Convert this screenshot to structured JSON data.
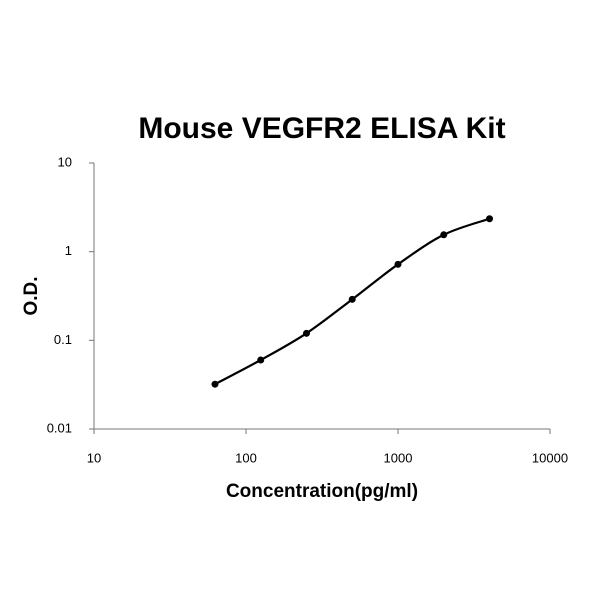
{
  "chart_data": {
    "type": "line",
    "title": "Mouse VEGFR2 ELISA Kit",
    "x_label": "Concentration(pg/ml)",
    "y_label": "O.D.",
    "x": [
      62.5,
      125,
      250,
      500,
      1000,
      2000,
      4000
    ],
    "series": [
      {
        "name": "O.D.",
        "color": "#000000",
        "values": [
          0.032,
          0.06,
          0.12,
          0.29,
          0.72,
          1.55,
          2.35
        ]
      }
    ],
    "xlim": [
      10,
      10000
    ],
    "xticks": [
      10,
      100,
      1000,
      10000
    ],
    "ylim": [
      0.01,
      10
    ],
    "yticks": [
      0.01,
      0.1,
      1,
      10
    ],
    "xscale": "log",
    "yscale": "log",
    "grid": false,
    "smooth": true,
    "markers": true
  }
}
